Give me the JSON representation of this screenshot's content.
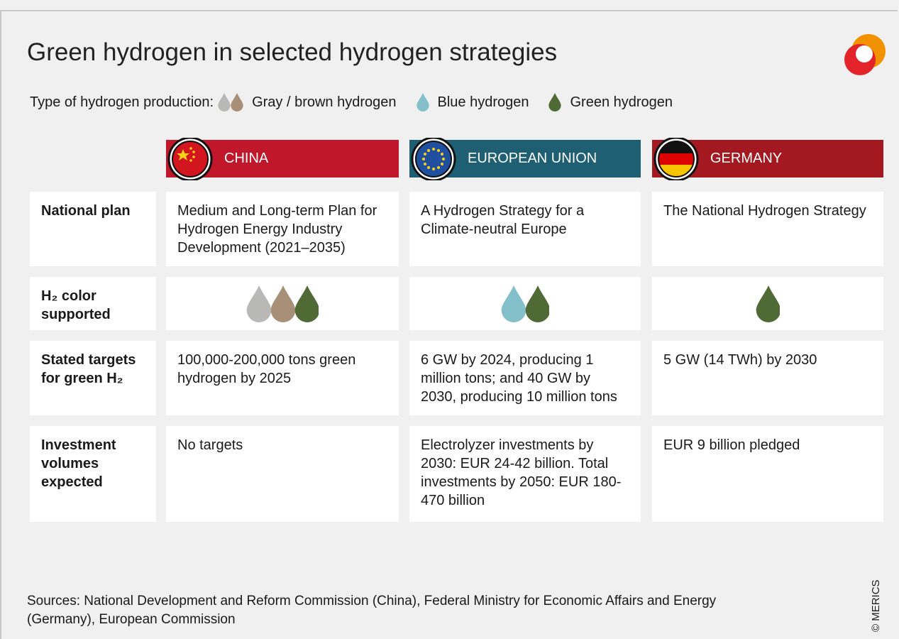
{
  "title": "Green hydrogen in selected hydrogen strategies",
  "legend": {
    "label": "Type of hydrogen production:",
    "items": [
      "Gray / brown hydrogen",
      "Blue hydrogen",
      "Green hydrogen"
    ]
  },
  "columns": [
    "CHINA",
    "EUROPEAN UNION",
    "GERMANY"
  ],
  "rows": [
    {
      "label": "National plan",
      "cells": [
        "Medium and Long-term Plan for Hydrogen Energy Industry Development (2021–2035)",
        "A Hydrogen Strategy for a Climate-neutral Europe",
        "The National Hydrogen Strategy"
      ]
    },
    {
      "label": "H₂ color supported"
    },
    {
      "label": "Stated targets for green H₂",
      "cells": [
        "100,000-200,000 tons green hydrogen by 2025",
        "6 GW by 2024, producing 1 million tons; and 40 GW by 2030, producing 10 million tons",
        "5 GW (14 TWh) by 2030"
      ]
    },
    {
      "label": "Investment volumes expected",
      "cells": [
        "No targets",
        "Electrolyzer investments by 2030: EUR 24-42 billion. Total investments by 2050: EUR 180-470 billion",
        "EUR 9 billion pledged"
      ]
    }
  ],
  "source": "Sources: National Development and Reform Commission (China), Federal Ministry for Economic Affairs and Energy (Germany), European Commission",
  "credit": "© MERICS"
}
